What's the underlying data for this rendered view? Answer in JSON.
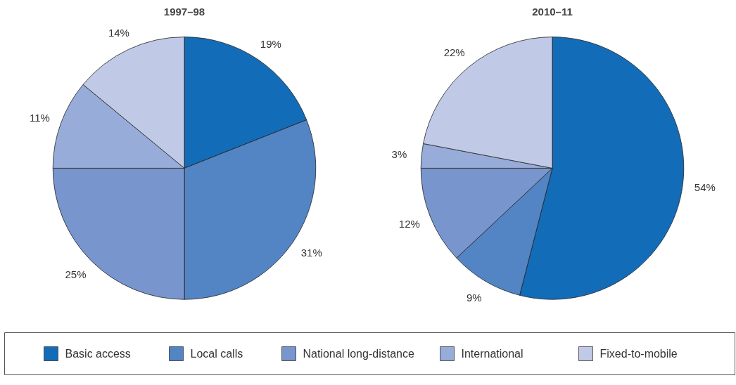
{
  "chart_data": [
    {
      "type": "pie",
      "title": "1997–98",
      "legend": "bottom",
      "categories": [
        "Basic access",
        "Local calls",
        "National long-distance",
        "International",
        "Fixed-to-mobile"
      ],
      "values": [
        19,
        31,
        25,
        11,
        14
      ],
      "colors": [
        "#136cb8",
        "#5384c4",
        "#7896cd",
        "#97acd8",
        "#c0cae6"
      ],
      "value_labels": [
        "19%",
        "31%",
        "25%",
        "11%",
        "14%"
      ]
    },
    {
      "type": "pie",
      "title": "2010–11",
      "categories": [
        null,
        null,
        null,
        null,
        null
      ],
      "values": [
        54,
        9,
        12,
        3,
        22
      ],
      "colors": [
        "#136cb8",
        "#5384c4",
        "#7896cd",
        "#97acd8",
        "#c0cae6"
      ],
      "value_labels": [
        "54%",
        "9%",
        "12%",
        "3%",
        "22%"
      ]
    }
  ]
}
